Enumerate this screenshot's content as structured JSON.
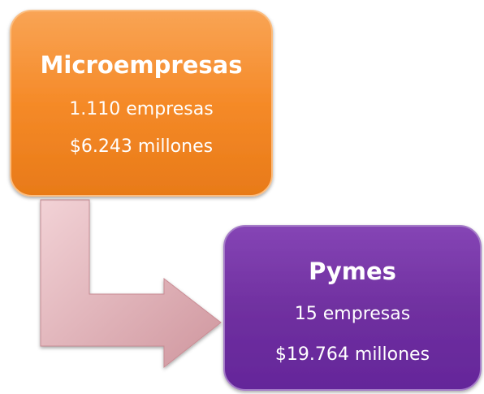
{
  "nodes": [
    {
      "title": "Microempresas",
      "lines": [
        "1.110 empresas",
        "$6.243 millones"
      ]
    },
    {
      "title": "Pymes",
      "lines": [
        "15 empresas",
        "$19.764 millones"
      ]
    }
  ]
}
